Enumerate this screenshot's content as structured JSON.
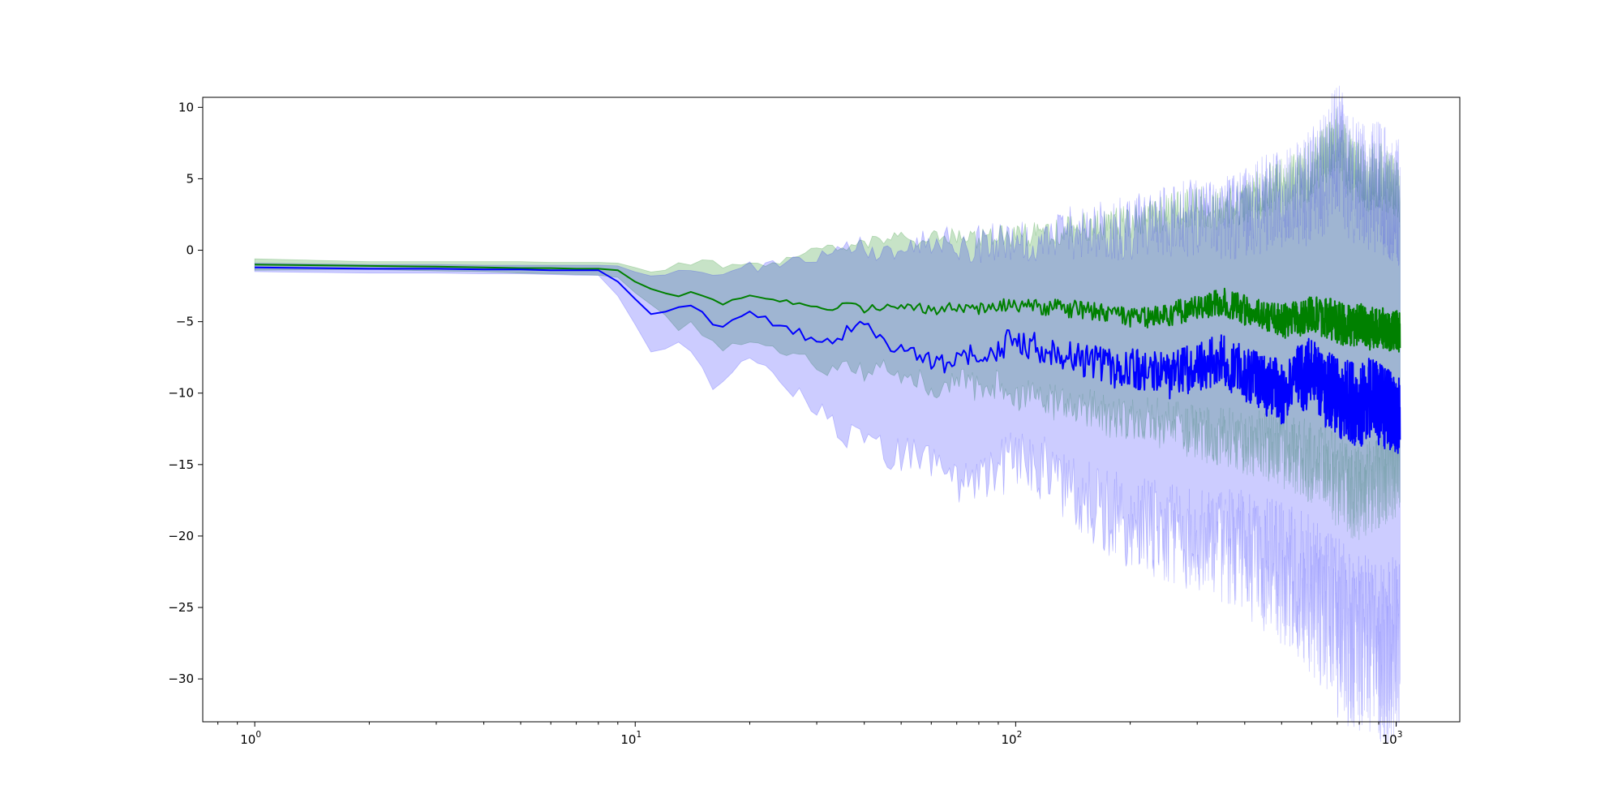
{
  "chart_data": {
    "type": "line",
    "title": "",
    "xlabel": "",
    "ylabel": "",
    "x_scale": "log",
    "xlim": [
      0.73,
      1470
    ],
    "ylim": [
      -33.0,
      10.7
    ],
    "grid": false,
    "legend": "none",
    "x_ticks": [
      {
        "value": 1,
        "base": "10",
        "exp": "0"
      },
      {
        "value": 10,
        "base": "10",
        "exp": "1"
      },
      {
        "value": 100,
        "base": "10",
        "exp": "2"
      },
      {
        "value": 1000,
        "base": "10",
        "exp": "3"
      }
    ],
    "y_ticks": [
      {
        "value": 10,
        "label": "10"
      },
      {
        "value": 5,
        "label": "5"
      },
      {
        "value": 0,
        "label": "0"
      },
      {
        "value": -5,
        "label": "−5"
      },
      {
        "value": -10,
        "label": "−10"
      },
      {
        "value": -15,
        "label": "−15"
      },
      {
        "value": -20,
        "label": "−20"
      },
      {
        "value": -25,
        "label": "−25"
      },
      {
        "value": -30,
        "label": "−30"
      }
    ],
    "series": [
      {
        "color": "#008000",
        "band_color": "#008000",
        "band_opacity": 0.22,
        "x": [
          1,
          2,
          3,
          4,
          5,
          6,
          7,
          8,
          9,
          10,
          11,
          12,
          13,
          14,
          15,
          16,
          17,
          18,
          20,
          22,
          25,
          28,
          32,
          36,
          40,
          45,
          50,
          56,
          63,
          71,
          80,
          90,
          100,
          125,
          150,
          175,
          200,
          250,
          300,
          350,
          400,
          450,
          500,
          550,
          600,
          650,
          700,
          750,
          800,
          850,
          900,
          950,
          1000,
          1024
        ],
        "y": [
          -1.0,
          -1.1,
          -1.15,
          -1.2,
          -1.25,
          -1.25,
          -1.3,
          -1.3,
          -1.4,
          -2.2,
          -2.7,
          -3.0,
          -3.2,
          -2.9,
          -3.2,
          -3.4,
          -3.8,
          -3.5,
          -3.2,
          -3.3,
          -3.6,
          -3.9,
          -4.2,
          -3.8,
          -4.1,
          -4.0,
          -3.8,
          -4.0,
          -4.2,
          -4.0,
          -4.1,
          -3.9,
          -3.8,
          -4.0,
          -4.2,
          -4.5,
          -4.8,
          -4.5,
          -4.0,
          -3.6,
          -4.2,
          -4.6,
          -5.0,
          -4.8,
          -4.5,
          -4.7,
          -5.0,
          -5.3,
          -5.2,
          -5.5,
          -5.4,
          -5.6,
          -5.6,
          -5.7
        ],
        "upper": [
          -0.6,
          -0.8,
          -0.8,
          -0.8,
          -0.8,
          -0.85,
          -0.85,
          -0.85,
          -0.9,
          -1.2,
          -1.5,
          -1.4,
          -0.9,
          -1.1,
          -0.7,
          -0.8,
          -1.3,
          -1.0,
          -0.9,
          -1.2,
          -0.6,
          -0.2,
          0.1,
          0.3,
          0.5,
          0.6,
          0.9,
          0.8,
          1.2,
          0.9,
          0.8,
          1.1,
          1.0,
          1.3,
          1.6,
          1.8,
          2.0,
          2.6,
          3.1,
          2.8,
          3.4,
          4.1,
          4.5,
          4.8,
          5.6,
          6.5,
          8.0,
          6.0,
          5.6,
          5.0,
          5.4,
          4.8,
          4.5,
          4.0
        ],
        "lower": [
          -1.4,
          -1.35,
          -1.45,
          -1.5,
          -1.6,
          -1.65,
          -1.7,
          -1.75,
          -1.9,
          -3.0,
          -3.8,
          -4.6,
          -5.6,
          -5.0,
          -6.0,
          -6.4,
          -7.0,
          -6.6,
          -6.6,
          -6.6,
          -7.4,
          -7.6,
          -8.4,
          -8.0,
          -8.6,
          -8.3,
          -8.8,
          -9.0,
          -9.8,
          -9.2,
          -9.6,
          -9.4,
          -10.2,
          -10.6,
          -11.0,
          -11.6,
          -11.8,
          -12.2,
          -12.8,
          -13.0,
          -13.4,
          -13.6,
          -14.0,
          -14.4,
          -14.8,
          -15.0,
          -16.2,
          -16.8,
          -17.0,
          -16.6,
          -16.2,
          -15.8,
          -15.4,
          -15.0
        ],
        "noise_amp": [
          0,
          0,
          0,
          0,
          0,
          0,
          0,
          0,
          0,
          0.02,
          0.03,
          0.05,
          0.06,
          0.08,
          0.1,
          0.12,
          0.14,
          0.16,
          0.2,
          0.24,
          0.3,
          0.36,
          0.42,
          0.48,
          0.54,
          0.6,
          0.66,
          0.72,
          0.8,
          0.88,
          0.96,
          1.04,
          1.1,
          1.2,
          1.3,
          1.4,
          1.5,
          1.65,
          1.8,
          1.95,
          2.1,
          2.25,
          2.4,
          2.55,
          2.7,
          2.85,
          3.0,
          3.0,
          3.0,
          3.0,
          3.0,
          3.0,
          3.0,
          3.0
        ]
      },
      {
        "color": "#0000ff",
        "band_color": "#0000ff",
        "band_opacity": 0.2,
        "x": [
          1,
          2,
          3,
          4,
          5,
          6,
          7,
          8,
          9,
          10,
          11,
          12,
          13,
          14,
          15,
          16,
          17,
          18,
          20,
          22,
          25,
          28,
          32,
          36,
          40,
          45,
          50,
          56,
          63,
          71,
          80,
          90,
          100,
          125,
          150,
          175,
          200,
          250,
          300,
          350,
          400,
          450,
          500,
          550,
          600,
          650,
          700,
          750,
          800,
          850,
          900,
          950,
          1000,
          1024
        ],
        "y": [
          -1.2,
          -1.3,
          -1.3,
          -1.35,
          -1.35,
          -1.4,
          -1.4,
          -1.4,
          -2.2,
          -3.4,
          -4.5,
          -4.3,
          -4.0,
          -3.8,
          -4.3,
          -5.2,
          -5.5,
          -5.0,
          -4.2,
          -4.8,
          -5.4,
          -6.0,
          -6.3,
          -5.7,
          -5.4,
          -6.5,
          -7.0,
          -7.4,
          -8.0,
          -7.8,
          -7.2,
          -6.8,
          -6.3,
          -7.0,
          -7.6,
          -8.2,
          -8.4,
          -8.8,
          -8.2,
          -7.6,
          -8.8,
          -9.4,
          -10.0,
          -9.2,
          -8.6,
          -9.8,
          -10.2,
          -10.6,
          -11.0,
          -10.4,
          -10.8,
          -11.2,
          -11.6,
          -11.8
        ],
        "upper": [
          -0.9,
          -1.0,
          -1.0,
          -1.05,
          -1.05,
          -1.05,
          -1.05,
          -1.05,
          -1.1,
          -1.5,
          -1.8,
          -1.7,
          -1.4,
          -1.3,
          -1.4,
          -1.7,
          -1.9,
          -1.6,
          -1.1,
          -1.2,
          -1.0,
          -0.6,
          -0.4,
          0.0,
          0.2,
          0.1,
          0.4,
          0.3,
          0.6,
          0.5,
          0.5,
          0.6,
          0.7,
          1.0,
          1.3,
          1.5,
          1.6,
          2.0,
          2.3,
          2.3,
          2.6,
          3.2,
          3.5,
          3.9,
          4.4,
          5.4,
          7.4,
          5.2,
          4.8,
          4.2,
          4.4,
          4.0,
          3.6,
          3.2
        ],
        "lower": [
          -1.5,
          -1.6,
          -1.6,
          -1.65,
          -1.65,
          -1.7,
          -1.75,
          -1.75,
          -3.2,
          -5.2,
          -7.2,
          -7.0,
          -6.4,
          -7.2,
          -8.4,
          -9.6,
          -9.4,
          -8.2,
          -7.2,
          -8.4,
          -9.8,
          -10.6,
          -11.8,
          -13.2,
          -12.6,
          -14.0,
          -14.4,
          -14.0,
          -15.0,
          -16.4,
          -16.6,
          -15.4,
          -14.4,
          -15.6,
          -17.2,
          -18.4,
          -19.0,
          -19.6,
          -20.2,
          -20.6,
          -21.2,
          -22.0,
          -22.6,
          -23.2,
          -24.0,
          -25.2,
          -26.4,
          -27.2,
          -27.6,
          -27.8,
          -28.0,
          -28.2,
          -27.6,
          -26.8
        ],
        "noise_amp": [
          0,
          0,
          0,
          0,
          0,
          0,
          0,
          0,
          0,
          0.05,
          0.08,
          0.1,
          0.15,
          0.2,
          0.25,
          0.3,
          0.35,
          0.4,
          0.45,
          0.5,
          0.6,
          0.7,
          0.8,
          0.9,
          1.0,
          1.1,
          1.2,
          1.3,
          1.45,
          1.6,
          1.75,
          1.9,
          2.0,
          2.25,
          2.5,
          2.75,
          3.0,
          3.25,
          3.5,
          3.75,
          4.0,
          4.3,
          4.6,
          4.9,
          5.2,
          5.5,
          5.8,
          5.8,
          5.8,
          5.8,
          5.8,
          5.8,
          5.8,
          5.8
        ]
      }
    ]
  }
}
